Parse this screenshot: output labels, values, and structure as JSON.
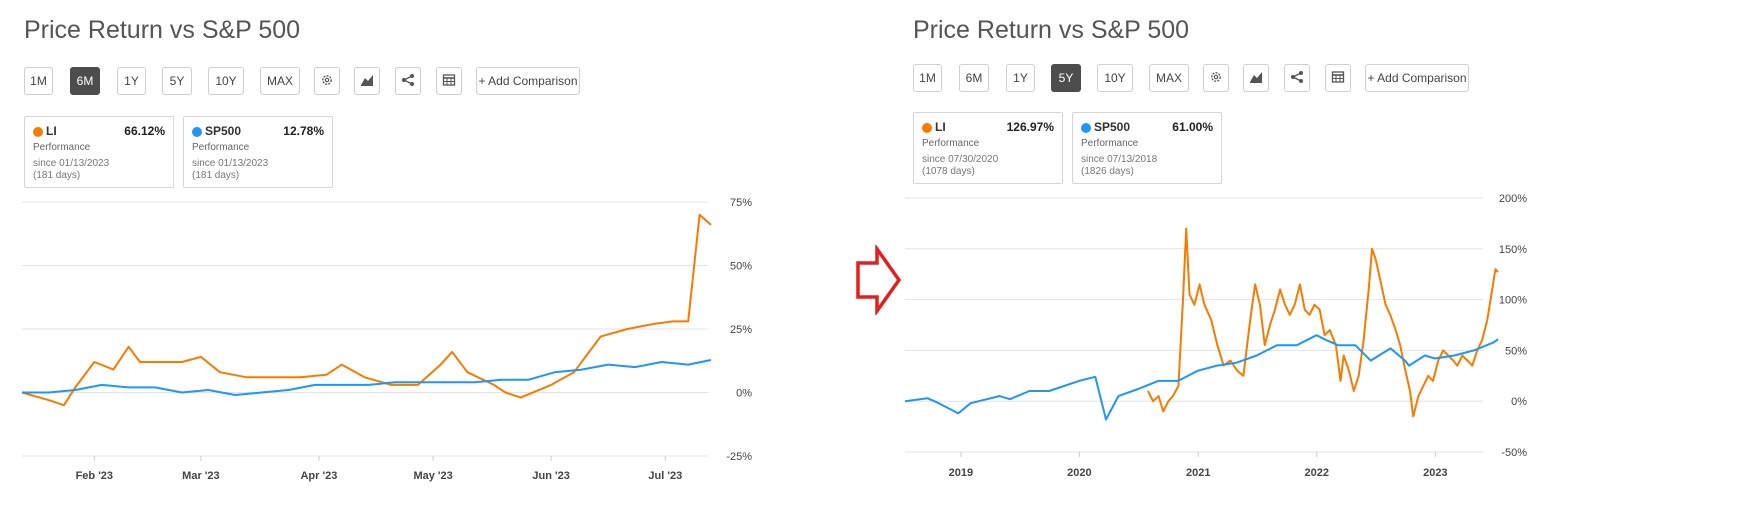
{
  "panels": [
    {
      "title": "Price Return vs S&P 500",
      "periods": [
        "1M",
        "6M",
        "1Y",
        "5Y",
        "10Y",
        "MAX"
      ],
      "active_period": "6M",
      "icons": [
        "settings-icon",
        "chart-type-icon",
        "share-icon",
        "table-icon"
      ],
      "add_comparison_label": "+ Add Comparison",
      "cards": [
        {
          "ticker": "LI",
          "value": "66.12%",
          "perf_label": "Performance",
          "since": "since 01/13/2023",
          "days": "(181 days)",
          "color": "#f57c00"
        },
        {
          "ticker": "SP500",
          "value": "12.78%",
          "perf_label": "Performance",
          "since": "since 01/13/2023",
          "days": "(181 days)",
          "color": "#2196f3"
        }
      ]
    },
    {
      "title": "Price Return vs S&P 500",
      "periods": [
        "1M",
        "6M",
        "1Y",
        "5Y",
        "10Y",
        "MAX"
      ],
      "active_period": "5Y",
      "icons": [
        "settings-icon",
        "chart-type-icon",
        "share-icon",
        "table-icon"
      ],
      "add_comparison_label": "+ Add Comparison",
      "cards": [
        {
          "ticker": "LI",
          "value": "126.97%",
          "perf_label": "Performance",
          "since": "since 07/30/2020",
          "days": "(1078 days)",
          "color": "#f57c00"
        },
        {
          "ticker": "SP500",
          "value": "61.00%",
          "perf_label": "Performance",
          "since": "since 07/13/2018",
          "days": "(1826 days)",
          "color": "#2196f3"
        }
      ]
    }
  ],
  "chart_data": [
    {
      "type": "line",
      "title": "Price Return vs S&P 500",
      "x_tick_labels": [
        "Feb '23",
        "Mar '23",
        "Apr '23",
        "May '23",
        "Jun '23",
        "Jul '23"
      ],
      "y_tick_labels": [
        "75%",
        "50%",
        "25%",
        "0%",
        "-25%"
      ],
      "ylim": [
        -25,
        75
      ],
      "xlim": [
        "2023-01-13",
        "2023-07-13"
      ],
      "grid": true,
      "series": [
        {
          "name": "LI",
          "color": "#f57c00",
          "points": [
            [
              "2023-01-13",
              0
            ],
            [
              "2023-01-20",
              -3
            ],
            [
              "2023-01-24",
              -5
            ],
            [
              "2023-01-27",
              2
            ],
            [
              "2023-02-01",
              12
            ],
            [
              "2023-02-06",
              9
            ],
            [
              "2023-02-10",
              18
            ],
            [
              "2023-02-13",
              12
            ],
            [
              "2023-02-20",
              12
            ],
            [
              "2023-02-24",
              12
            ],
            [
              "2023-03-01",
              14
            ],
            [
              "2023-03-06",
              8
            ],
            [
              "2023-03-13",
              6
            ],
            [
              "2023-03-20",
              6
            ],
            [
              "2023-03-27",
              6
            ],
            [
              "2023-04-03",
              7
            ],
            [
              "2023-04-07",
              11
            ],
            [
              "2023-04-13",
              6
            ],
            [
              "2023-04-20",
              3
            ],
            [
              "2023-04-27",
              3
            ],
            [
              "2023-05-03",
              11
            ],
            [
              "2023-05-06",
              16
            ],
            [
              "2023-05-10",
              8
            ],
            [
              "2023-05-17",
              3
            ],
            [
              "2023-05-20",
              0
            ],
            [
              "2023-05-24",
              -2
            ],
            [
              "2023-06-01",
              3
            ],
            [
              "2023-06-07",
              8
            ],
            [
              "2023-06-14",
              22
            ],
            [
              "2023-06-21",
              25
            ],
            [
              "2023-06-28",
              27
            ],
            [
              "2023-07-03",
              28
            ],
            [
              "2023-07-07",
              28
            ],
            [
              "2023-07-10",
              70
            ],
            [
              "2023-07-13",
              66
            ]
          ]
        },
        {
          "name": "SP500",
          "color": "#2196f3",
          "points": [
            [
              "2023-01-13",
              0
            ],
            [
              "2023-01-20",
              0
            ],
            [
              "2023-01-27",
              1
            ],
            [
              "2023-02-03",
              3
            ],
            [
              "2023-02-10",
              2
            ],
            [
              "2023-02-17",
              2
            ],
            [
              "2023-02-24",
              0
            ],
            [
              "2023-03-03",
              1
            ],
            [
              "2023-03-10",
              -1
            ],
            [
              "2023-03-17",
              0
            ],
            [
              "2023-03-24",
              1
            ],
            [
              "2023-03-31",
              3
            ],
            [
              "2023-04-07",
              3
            ],
            [
              "2023-04-14",
              3
            ],
            [
              "2023-04-21",
              4
            ],
            [
              "2023-04-28",
              4
            ],
            [
              "2023-05-05",
              4
            ],
            [
              "2023-05-12",
              4
            ],
            [
              "2023-05-19",
              5
            ],
            [
              "2023-05-26",
              5
            ],
            [
              "2023-06-02",
              8
            ],
            [
              "2023-06-09",
              9
            ],
            [
              "2023-06-16",
              11
            ],
            [
              "2023-06-23",
              10
            ],
            [
              "2023-06-30",
              12
            ],
            [
              "2023-07-07",
              11
            ],
            [
              "2023-07-13",
              12.78
            ]
          ]
        }
      ]
    },
    {
      "type": "line",
      "title": "Price Return vs S&P 500",
      "x_tick_labels": [
        "2019",
        "2020",
        "2021",
        "2022",
        "2023"
      ],
      "y_tick_labels": [
        "200%",
        "150%",
        "100%",
        "50%",
        "0%",
        "-50%"
      ],
      "ylim": [
        -50,
        200
      ],
      "xlim": [
        "2018-07-13",
        "2023-07-13"
      ],
      "grid": true,
      "series": [
        {
          "name": "LI",
          "color": "#f57c00",
          "points": [
            [
              "2020-07-30",
              10
            ],
            [
              "2020-08-15",
              0
            ],
            [
              "2020-09-01",
              5
            ],
            [
              "2020-09-15",
              -10
            ],
            [
              "2020-10-01",
              0
            ],
            [
              "2020-10-15",
              5
            ],
            [
              "2020-11-01",
              15
            ],
            [
              "2020-11-15",
              100
            ],
            [
              "2020-11-25",
              170
            ],
            [
              "2020-12-05",
              105
            ],
            [
              "2020-12-20",
              95
            ],
            [
              "2021-01-05",
              115
            ],
            [
              "2021-01-20",
              95
            ],
            [
              "2021-02-10",
              80
            ],
            [
              "2021-03-01",
              55
            ],
            [
              "2021-03-20",
              35
            ],
            [
              "2021-04-10",
              40
            ],
            [
              "2021-05-01",
              30
            ],
            [
              "2021-05-20",
              25
            ],
            [
              "2021-06-10",
              80
            ],
            [
              "2021-06-25",
              115
            ],
            [
              "2021-07-10",
              95
            ],
            [
              "2021-07-25",
              55
            ],
            [
              "2021-08-10",
              75
            ],
            [
              "2021-08-25",
              90
            ],
            [
              "2021-09-10",
              110
            ],
            [
              "2021-09-25",
              95
            ],
            [
              "2021-10-10",
              85
            ],
            [
              "2021-10-25",
              95
            ],
            [
              "2021-11-10",
              115
            ],
            [
              "2021-11-25",
              90
            ],
            [
              "2021-12-10",
              85
            ],
            [
              "2021-12-25",
              95
            ],
            [
              "2022-01-10",
              90
            ],
            [
              "2022-01-25",
              65
            ],
            [
              "2022-02-10",
              70
            ],
            [
              "2022-03-01",
              55
            ],
            [
              "2022-03-15",
              20
            ],
            [
              "2022-03-25",
              45
            ],
            [
              "2022-04-10",
              30
            ],
            [
              "2022-04-25",
              10
            ],
            [
              "2022-05-10",
              25
            ],
            [
              "2022-05-25",
              60
            ],
            [
              "2022-06-10",
              110
            ],
            [
              "2022-06-20",
              150
            ],
            [
              "2022-07-01",
              140
            ],
            [
              "2022-07-15",
              120
            ],
            [
              "2022-08-01",
              95
            ],
            [
              "2022-08-15",
              85
            ],
            [
              "2022-09-01",
              70
            ],
            [
              "2022-09-15",
              55
            ],
            [
              "2022-10-01",
              30
            ],
            [
              "2022-10-15",
              10
            ],
            [
              "2022-10-25",
              -15
            ],
            [
              "2022-11-10",
              5
            ],
            [
              "2022-11-25",
              15
            ],
            [
              "2022-12-10",
              25
            ],
            [
              "2022-12-25",
              20
            ],
            [
              "2023-01-10",
              40
            ],
            [
              "2023-01-25",
              50
            ],
            [
              "2023-02-10",
              45
            ],
            [
              "2023-02-25",
              40
            ],
            [
              "2023-03-10",
              35
            ],
            [
              "2023-03-25",
              45
            ],
            [
              "2023-04-10",
              40
            ],
            [
              "2023-04-25",
              35
            ],
            [
              "2023-05-10",
              50
            ],
            [
              "2023-05-25",
              60
            ],
            [
              "2023-06-10",
              80
            ],
            [
              "2023-06-25",
              110
            ],
            [
              "2023-07-05",
              130
            ],
            [
              "2023-07-13",
              127
            ]
          ]
        },
        {
          "name": "SP500",
          "color": "#2196f3",
          "points": [
            [
              "2018-07-13",
              0
            ],
            [
              "2018-09-20",
              3
            ],
            [
              "2018-10-25",
              -2
            ],
            [
              "2018-12-24",
              -12
            ],
            [
              "2019-01-31",
              -2
            ],
            [
              "2019-04-30",
              5
            ],
            [
              "2019-06-01",
              2
            ],
            [
              "2019-07-31",
              10
            ],
            [
              "2019-09-30",
              10
            ],
            [
              "2019-12-31",
              20
            ],
            [
              "2020-02-19",
              24
            ],
            [
              "2020-03-23",
              -18
            ],
            [
              "2020-04-30",
              5
            ],
            [
              "2020-06-30",
              12
            ],
            [
              "2020-08-31",
              20
            ],
            [
              "2020-10-31",
              20
            ],
            [
              "2020-12-31",
              30
            ],
            [
              "2021-02-28",
              35
            ],
            [
              "2021-04-30",
              38
            ],
            [
              "2021-06-30",
              45
            ],
            [
              "2021-08-31",
              55
            ],
            [
              "2021-10-31",
              55
            ],
            [
              "2021-12-31",
              65
            ],
            [
              "2022-01-31",
              60
            ],
            [
              "2022-03-08",
              55
            ],
            [
              "2022-04-30",
              55
            ],
            [
              "2022-06-16",
              40
            ],
            [
              "2022-08-16",
              52
            ],
            [
              "2022-09-30",
              40
            ],
            [
              "2022-10-12",
              35
            ],
            [
              "2022-11-30",
              45
            ],
            [
              "2022-12-31",
              42
            ],
            [
              "2023-02-28",
              45
            ],
            [
              "2023-04-30",
              50
            ],
            [
              "2023-06-30",
              58
            ],
            [
              "2023-07-13",
              61
            ]
          ]
        }
      ]
    }
  ]
}
